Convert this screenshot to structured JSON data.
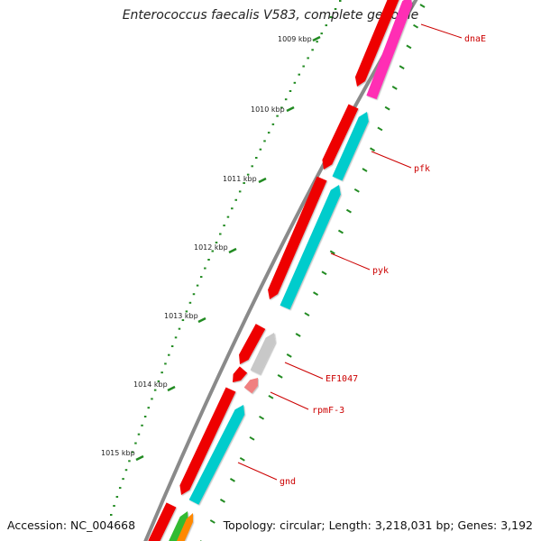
{
  "title": "Enterococcus faecalis V583, complete genome",
  "accession": "Accession: NC_004668",
  "topology": "Topology: circular; Length: 3,218,031 bp; Genes: 3,192",
  "colors": {
    "backbone": "#8a8a8a",
    "forward_genes": "#ee0000",
    "reverse_genes": "#00cccc",
    "dnaE_reverse": "#ff2fb4",
    "ticks": "#228b22",
    "gene_labels": "#cc0000",
    "EF1047_gene": "#c8c8c8",
    "rpmF3_gene": "#f08080",
    "lower_genes": [
      "#33bb33",
      "#ff8800"
    ]
  },
  "kbp_ticks": [
    {
      "label": "1009 kbp"
    },
    {
      "label": "1010 kbp"
    },
    {
      "label": "1011 kbp"
    },
    {
      "label": "1012 kbp"
    },
    {
      "label": "1013 kbp"
    },
    {
      "label": "1014 kbp"
    },
    {
      "label": "1015 kbp"
    }
  ],
  "genes": [
    {
      "name": "dnaE"
    },
    {
      "name": "pfk"
    },
    {
      "name": "pyk"
    },
    {
      "name": "EF1047"
    },
    {
      "name": "rpmF-3"
    },
    {
      "name": "gnd"
    }
  ]
}
